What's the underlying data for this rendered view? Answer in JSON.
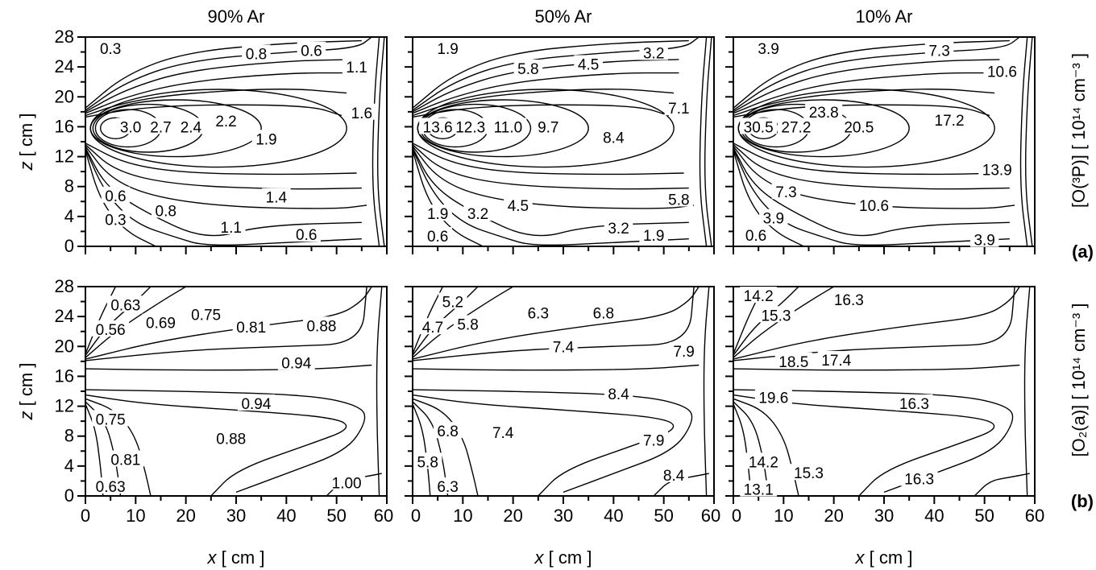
{
  "chart_data": [
    {
      "type": "contour",
      "row": "a",
      "column": "90% Ar",
      "ylabel_var": "z",
      "ylabel_unit": "[ cm ]",
      "xlim": [
        0,
        60
      ],
      "ylim": [
        0,
        28
      ],
      "contour_labels": [
        {
          "text": "0.3",
          "x": 5,
          "y": 26.5
        },
        {
          "text": "0.8",
          "x": 34,
          "y": 25.8
        },
        {
          "text": "0.6",
          "x": 45,
          "y": 26.2
        },
        {
          "text": "1.1",
          "x": 54,
          "y": 24
        },
        {
          "text": "1.6",
          "x": 55,
          "y": 17.9
        },
        {
          "text": "3.0",
          "x": 9,
          "y": 16
        },
        {
          "text": "2.7",
          "x": 15,
          "y": 16
        },
        {
          "text": "2.4",
          "x": 21,
          "y": 16
        },
        {
          "text": "2.2",
          "x": 28,
          "y": 16.8
        },
        {
          "text": "1.9",
          "x": 36,
          "y": 14.4
        },
        {
          "text": "0.6",
          "x": 6,
          "y": 6.8
        },
        {
          "text": "1.4",
          "x": 38,
          "y": 6.6
        },
        {
          "text": "0.8",
          "x": 16,
          "y": 4.8
        },
        {
          "text": "1.1",
          "x": 29,
          "y": 2.6
        },
        {
          "text": "0.3",
          "x": 6,
          "y": 3.6
        },
        {
          "text": "0.6",
          "x": 44,
          "y": 1.6
        }
      ]
    },
    {
      "type": "contour",
      "row": "a",
      "column": "50% Ar",
      "xlim": [
        0,
        60
      ],
      "ylim": [
        0,
        28
      ],
      "contour_labels": [
        {
          "text": "1.9",
          "x": 7,
          "y": 26.5
        },
        {
          "text": "5.8",
          "x": 23,
          "y": 23.8
        },
        {
          "text": "4.5",
          "x": 35,
          "y": 24.4
        },
        {
          "text": "3.2",
          "x": 48,
          "y": 25.9
        },
        {
          "text": "7.1",
          "x": 53,
          "y": 18.5
        },
        {
          "text": "13.6",
          "x": 5,
          "y": 16
        },
        {
          "text": "12.3",
          "x": 11.5,
          "y": 16
        },
        {
          "text": "11.0",
          "x": 19,
          "y": 16
        },
        {
          "text": "9.7",
          "x": 27,
          "y": 16
        },
        {
          "text": "8.4",
          "x": 40,
          "y": 14.6
        },
        {
          "text": "5.8",
          "x": 53,
          "y": 6.3
        },
        {
          "text": "1.9",
          "x": 5,
          "y": 4.4
        },
        {
          "text": "3.2",
          "x": 13,
          "y": 4.4
        },
        {
          "text": "4.5",
          "x": 21,
          "y": 5.5
        },
        {
          "text": "3.2",
          "x": 41,
          "y": 2.5
        },
        {
          "text": "1.9",
          "x": 48,
          "y": 1.5
        },
        {
          "text": "0.6",
          "x": 5,
          "y": 1.4
        }
      ]
    },
    {
      "type": "contour",
      "row": "a",
      "column": "10% Ar",
      "xlim": [
        0,
        60
      ],
      "ylim": [
        0,
        28
      ],
      "right_label": "[O(³P)] [ 10¹⁴ cm⁻³ ]",
      "panel_letter": "(a)",
      "contour_labels": [
        {
          "text": "3.9",
          "x": 7,
          "y": 26.5
        },
        {
          "text": "7.3",
          "x": 41,
          "y": 26.2
        },
        {
          "text": "10.6",
          "x": 53.5,
          "y": 23.4
        },
        {
          "text": "23.8",
          "x": 18,
          "y": 18
        },
        {
          "text": "17.2",
          "x": 43,
          "y": 16.9
        },
        {
          "text": "30.5",
          "x": 5,
          "y": 16
        },
        {
          "text": "27.2",
          "x": 12.5,
          "y": 16
        },
        {
          "text": "20.5",
          "x": 25,
          "y": 16
        },
        {
          "text": "13.9",
          "x": 52.5,
          "y": 10.3
        },
        {
          "text": "7.3",
          "x": 10.5,
          "y": 7.3
        },
        {
          "text": "10.6",
          "x": 28,
          "y": 5.5
        },
        {
          "text": "3.9",
          "x": 8,
          "y": 3.8
        },
        {
          "text": "0.6",
          "x": 4.5,
          "y": 1.5
        },
        {
          "text": "3.9",
          "x": 50,
          "y": 0.9
        }
      ]
    },
    {
      "type": "contour",
      "row": "b",
      "column": "90% Ar",
      "xlabel_var": "x",
      "xlabel_unit": "[ cm ]",
      "ylabel_var": "z",
      "ylabel_unit": "[ cm ]",
      "xlim": [
        0,
        60
      ],
      "ylim": [
        0,
        28
      ],
      "contour_labels": [
        {
          "text": "0.63",
          "x": 8,
          "y": 25.6
        },
        {
          "text": "0.75",
          "x": 24,
          "y": 24.3
        },
        {
          "text": "0.56",
          "x": 5,
          "y": 22.3
        },
        {
          "text": "0.69",
          "x": 15,
          "y": 23.2
        },
        {
          "text": "0.81",
          "x": 33,
          "y": 22.6
        },
        {
          "text": "0.88",
          "x": 47,
          "y": 22.8
        },
        {
          "text": "0.94",
          "x": 42,
          "y": 17.8
        },
        {
          "text": "0.94",
          "x": 34,
          "y": 12.4
        },
        {
          "text": "0.75",
          "x": 5,
          "y": 10.3
        },
        {
          "text": "0.88",
          "x": 29,
          "y": 7.7
        },
        {
          "text": "0.81",
          "x": 8,
          "y": 4.9
        },
        {
          "text": "1.00",
          "x": 52,
          "y": 1.8
        },
        {
          "text": "0.63",
          "x": 5,
          "y": 1.3
        }
      ]
    },
    {
      "type": "contour",
      "row": "b",
      "column": "50% Ar",
      "xlabel_var": "x",
      "xlabel_unit": "[ cm ]",
      "xlim": [
        0,
        60
      ],
      "ylim": [
        0,
        28
      ],
      "contour_labels": [
        {
          "text": "5.2",
          "x": 8,
          "y": 26
        },
        {
          "text": "6.3",
          "x": 25,
          "y": 24.5
        },
        {
          "text": "6.8",
          "x": 38,
          "y": 24.5
        },
        {
          "text": "4.7",
          "x": 4,
          "y": 22.6
        },
        {
          "text": "5.8",
          "x": 11,
          "y": 23
        },
        {
          "text": "7.4",
          "x": 30,
          "y": 20
        },
        {
          "text": "7.9",
          "x": 54,
          "y": 19.4
        },
        {
          "text": "8.4",
          "x": 41,
          "y": 13.7
        },
        {
          "text": "6.8",
          "x": 7,
          "y": 8.7
        },
        {
          "text": "7.4",
          "x": 18,
          "y": 8.5
        },
        {
          "text": "7.9",
          "x": 48,
          "y": 7.5
        },
        {
          "text": "5.8",
          "x": 3,
          "y": 4.6
        },
        {
          "text": "6.3",
          "x": 7,
          "y": 1.3
        },
        {
          "text": "8.4",
          "x": 52,
          "y": 2.8
        }
      ]
    },
    {
      "type": "contour",
      "row": "b",
      "column": "10% Ar",
      "xlabel_var": "x",
      "xlabel_unit": "[ cm ]",
      "xlim": [
        0,
        60
      ],
      "ylim": [
        0,
        28
      ],
      "right_label": "[O₂(a)] [ 10¹⁴ cm⁻³ ]",
      "panel_letter": "(b)",
      "contour_labels": [
        {
          "text": "14.2",
          "x": 5,
          "y": 26.8
        },
        {
          "text": "16.3",
          "x": 23,
          "y": 26.3
        },
        {
          "text": "15.3",
          "x": 8.5,
          "y": 24.2
        },
        {
          "text": "18.5",
          "x": 12,
          "y": 18
        },
        {
          "text": "17.4",
          "x": 20.5,
          "y": 18.2
        },
        {
          "text": "19.6",
          "x": 8,
          "y": 13.2
        },
        {
          "text": "16.3",
          "x": 36,
          "y": 12.4
        },
        {
          "text": "14.2",
          "x": 6,
          "y": 4.6
        },
        {
          "text": "15.3",
          "x": 15,
          "y": 3.1
        },
        {
          "text": "13.1",
          "x": 5,
          "y": 0.9
        },
        {
          "text": "16.3",
          "x": 37,
          "y": 2.3
        }
      ]
    }
  ],
  "axes": {
    "x_ticks": [
      "0",
      "10",
      "20",
      "30",
      "40",
      "50",
      "60"
    ],
    "y_ticks": [
      "0",
      "4",
      "8",
      "12",
      "16",
      "20",
      "24",
      "28"
    ]
  }
}
